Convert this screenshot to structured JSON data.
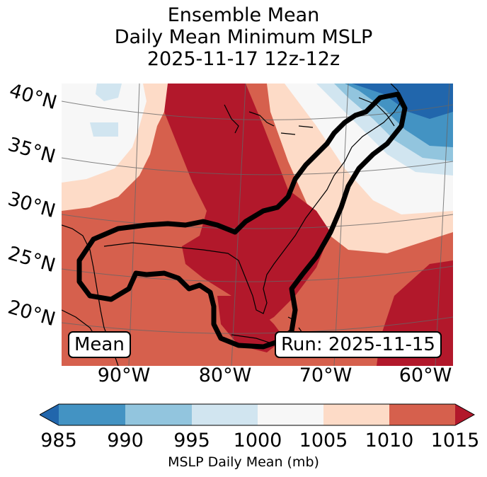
{
  "title": {
    "line1": "Ensemble Mean",
    "line2": "Daily Mean Minimum MSLP",
    "line3": "2025-11-17 12z-12z"
  },
  "map": {
    "lat_labels": [
      "40°N",
      "35°N",
      "30°N",
      "25°N",
      "20°N"
    ],
    "lon_labels": [
      "90°W",
      "80°W",
      "70°W",
      "60°W"
    ],
    "mean_box": "Mean",
    "run_box": "Run: 2025-11-15"
  },
  "colorbar": {
    "ticks": [
      "985",
      "990",
      "995",
      "1000",
      "1005",
      "1010",
      "1015"
    ],
    "label": "MSLP Daily Mean (mb)",
    "colors": {
      "under": "#2166ac",
      "985_990": "#4393c3",
      "990_995": "#92c5de",
      "995_1000": "#d1e5f0",
      "1000_1005": "#f7f7f7",
      "1005_1010": "#fddbc7",
      "1010_1015": "#d6604d",
      "over": "#b2182b"
    }
  }
}
